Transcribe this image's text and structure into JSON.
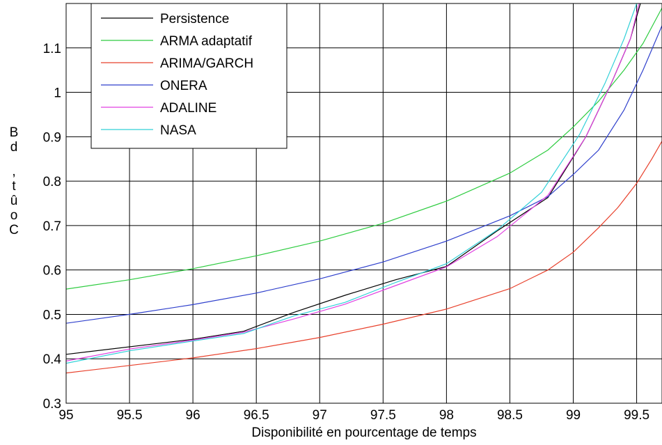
{
  "chart_data": {
    "type": "line",
    "title": "",
    "xlabel": "Disponibilité en pourcentage de temps",
    "ylabel_chars": [
      "B",
      "d",
      ",",
      "t",
      "û",
      "o",
      "C"
    ],
    "xlim": [
      95,
      99.7
    ],
    "ylim": [
      0.3,
      1.2
    ],
    "xticks": [
      95,
      95.5,
      96,
      96.5,
      97,
      97.5,
      98,
      98.5,
      99,
      99.5
    ],
    "xtick_labels": [
      "95",
      "95.5",
      "96",
      "96.5",
      "97",
      "97.5",
      "98",
      "98.5",
      "99",
      "99.5"
    ],
    "yticks": [
      0.3,
      0.4,
      0.5,
      0.6,
      0.7,
      0.8,
      0.9,
      1.0,
      1.1
    ],
    "ytick_labels": [
      "0.3",
      "0.4",
      "0.5",
      "0.6",
      "0.7",
      "0.8",
      "0.9",
      "1",
      "1.1"
    ],
    "grid": true,
    "legend_position": "top-left",
    "series": [
      {
        "name": "Persistence",
        "color": "#000000",
        "x": [
          95,
          96,
          96.4,
          96.8,
          97.2,
          97.6,
          98,
          98.4,
          98.8,
          99.1,
          99.3,
          99.45,
          99.53
        ],
        "y": [
          0.41,
          0.444,
          0.462,
          0.505,
          0.543,
          0.578,
          0.608,
          0.688,
          0.763,
          0.9,
          1.02,
          1.12,
          1.2
        ]
      },
      {
        "name": "ARMA adaptatif",
        "color": "#2ecc40",
        "x": [
          95,
          95.5,
          96,
          96.5,
          97,
          97.5,
          98,
          98.5,
          98.8,
          99,
          99.2,
          99.4,
          99.55,
          99.7
        ],
        "y": [
          0.557,
          0.578,
          0.603,
          0.632,
          0.665,
          0.705,
          0.755,
          0.818,
          0.87,
          0.922,
          0.98,
          1.05,
          1.11,
          1.19
        ]
      },
      {
        "name": "ARIMA/GARCH",
        "color": "#e8402b",
        "x": [
          95,
          95.5,
          96,
          96.5,
          97,
          97.5,
          98,
          98.5,
          98.8,
          99,
          99.2,
          99.35,
          99.5,
          99.62,
          99.7
        ],
        "y": [
          0.368,
          0.385,
          0.402,
          0.423,
          0.448,
          0.478,
          0.512,
          0.558,
          0.6,
          0.64,
          0.695,
          0.74,
          0.795,
          0.85,
          0.89
        ]
      },
      {
        "name": "ONERA",
        "color": "#2e3fcc",
        "x": [
          95,
          95.5,
          96,
          96.5,
          97,
          97.5,
          98,
          98.5,
          98.8,
          99,
          99.2,
          99.4,
          99.55,
          99.7
        ],
        "y": [
          0.48,
          0.5,
          0.522,
          0.548,
          0.58,
          0.618,
          0.665,
          0.722,
          0.765,
          0.815,
          0.87,
          0.96,
          1.05,
          1.15
        ]
      },
      {
        "name": "ADALINE",
        "color": "#e040e0",
        "x": [
          95,
          95.5,
          96,
          96.4,
          96.8,
          97.2,
          97.6,
          98,
          98.4,
          98.8,
          99.1,
          99.3,
          99.45,
          99.52
        ],
        "y": [
          0.395,
          0.422,
          0.442,
          0.46,
          0.49,
          0.523,
          0.565,
          0.607,
          0.675,
          0.768,
          0.9,
          1.02,
          1.12,
          1.2
        ]
      },
      {
        "name": "NASA",
        "color": "#30d0d8",
        "x": [
          95,
          95.5,
          96,
          96.4,
          96.8,
          97.2,
          97.6,
          98,
          98.4,
          98.75,
          99.05,
          99.25,
          99.4,
          99.5
        ],
        "y": [
          0.39,
          0.418,
          0.44,
          0.457,
          0.497,
          0.527,
          0.572,
          0.614,
          0.69,
          0.775,
          0.905,
          1.02,
          1.12,
          1.2
        ]
      }
    ]
  }
}
